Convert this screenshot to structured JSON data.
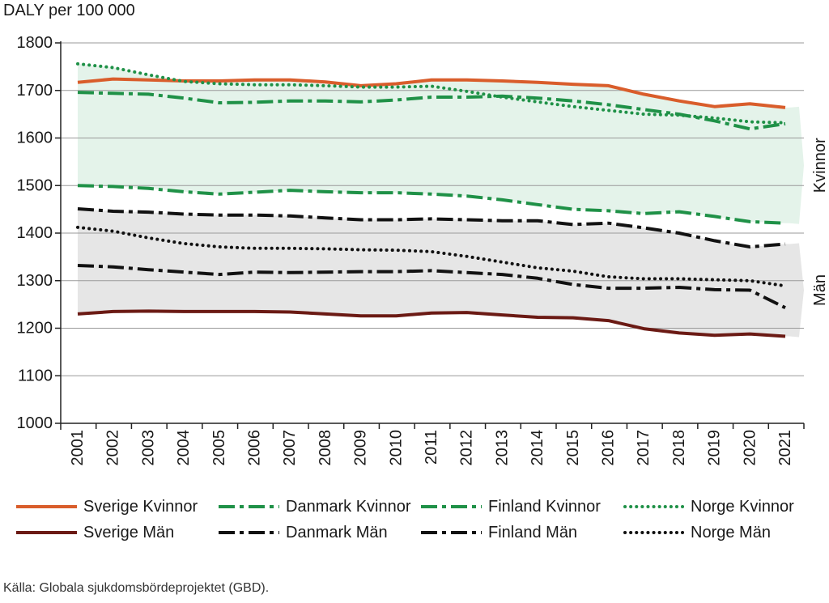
{
  "chart_data": {
    "type": "line",
    "ylabel": "DALY per 100 000",
    "ylim": [
      1000,
      1800
    ],
    "yticks": [
      "1000",
      "1100",
      "1200",
      "1300",
      "1400",
      "1500",
      "1600",
      "1700",
      "1800"
    ],
    "categories": [
      "2001",
      "2002",
      "2003",
      "2004",
      "2005",
      "2006",
      "2007",
      "2008",
      "2009",
      "2010",
      "2011",
      "2012",
      "2013",
      "2014",
      "2015",
      "2016",
      "2017",
      "2018",
      "2019",
      "2020",
      "2021"
    ],
    "band_labels": {
      "women": "Kvinnor",
      "men": "Män"
    },
    "series": [
      {
        "name": "Sverige Kvinnor",
        "color": "#d95d2b",
        "style": "solid",
        "values": [
          1717,
          1724,
          1722,
          1720,
          1720,
          1722,
          1722,
          1718,
          1710,
          1714,
          1722,
          1722,
          1720,
          1717,
          1713,
          1710,
          1692,
          1678,
          1666,
          1672,
          1664
        ]
      },
      {
        "name": "Danmark Kvinnor",
        "color": "#1f9147",
        "style": "dashdot",
        "values": [
          1696,
          1694,
          1692,
          1684,
          1674,
          1675,
          1678,
          1678,
          1676,
          1680,
          1686,
          1686,
          1688,
          1684,
          1678,
          1670,
          1660,
          1650,
          1636,
          1619,
          1630
        ]
      },
      {
        "name": "Finland Kvinnor",
        "color": "#1f9147",
        "style": "dashdot",
        "values": [
          1500,
          1498,
          1494,
          1487,
          1482,
          1486,
          1490,
          1487,
          1485,
          1485,
          1482,
          1478,
          1470,
          1460,
          1450,
          1447,
          1441,
          1445,
          1435,
          1424,
          1421
        ]
      },
      {
        "name": "Norge Kvinnor",
        "color": "#1f9147",
        "style": "dotted",
        "values": [
          1756,
          1748,
          1733,
          1719,
          1714,
          1712,
          1712,
          1710,
          1707,
          1707,
          1709,
          1698,
          1686,
          1676,
          1666,
          1658,
          1650,
          1648,
          1642,
          1634,
          1632
        ]
      },
      {
        "name": "Sverige Män",
        "color": "#6b1a14",
        "style": "solid",
        "values": [
          1230,
          1235,
          1236,
          1235,
          1235,
          1235,
          1234,
          1230,
          1226,
          1226,
          1232,
          1233,
          1228,
          1223,
          1222,
          1216,
          1199,
          1190,
          1185,
          1188,
          1183
        ]
      },
      {
        "name": "Danmark Män",
        "color": "#111111",
        "style": "dashdot",
        "values": [
          1332,
          1329,
          1323,
          1318,
          1313,
          1318,
          1317,
          1318,
          1319,
          1319,
          1321,
          1317,
          1313,
          1305,
          1292,
          1284,
          1284,
          1286,
          1281,
          1280,
          1243
        ]
      },
      {
        "name": "Finland Män",
        "color": "#111111",
        "style": "dashdot",
        "values": [
          1451,
          1446,
          1444,
          1440,
          1438,
          1438,
          1436,
          1432,
          1428,
          1428,
          1430,
          1428,
          1426,
          1426,
          1418,
          1421,
          1411,
          1400,
          1384,
          1371,
          1377
        ]
      },
      {
        "name": "Norge Män",
        "color": "#111111",
        "style": "dotted",
        "values": [
          1412,
          1404,
          1390,
          1378,
          1371,
          1368,
          1368,
          1367,
          1365,
          1364,
          1361,
          1351,
          1339,
          1327,
          1320,
          1308,
          1304,
          1304,
          1302,
          1300,
          1289
        ]
      }
    ]
  },
  "source_text": "Källa: Globala sjukdomsbördeprojektet (GBD)."
}
